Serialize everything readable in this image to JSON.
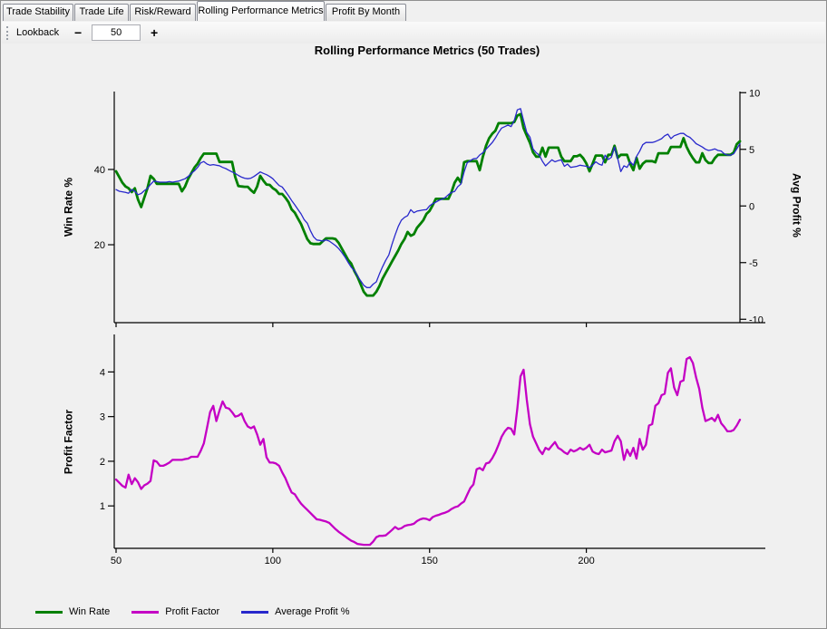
{
  "tabs": [
    {
      "label": "Trade Stability",
      "active": false
    },
    {
      "label": "Trade Life",
      "active": false
    },
    {
      "label": "Risk/Reward",
      "active": false
    },
    {
      "label": "Rolling Performance Metrics",
      "active": true
    },
    {
      "label": "Profit By Month",
      "active": false
    }
  ],
  "toolbar": {
    "label": "Lookback",
    "minus_label": "−",
    "value": "50",
    "plus_label": "+"
  },
  "legend": [
    {
      "label": "Win Rate",
      "color": "#008000"
    },
    {
      "label": "Profit Factor",
      "color": "#c400c4"
    },
    {
      "label": "Average Profit %",
      "color": "#2828cc"
    }
  ],
  "chart_data": [
    {
      "type": "line",
      "title": "Rolling Performance Metrics (50 Trades)",
      "ylabel_left": "Win Rate %",
      "ylabel_right": "Avg Profit %",
      "x_range": [
        50,
        249
      ],
      "y_left_range": [
        -0.7,
        60.7
      ],
      "y_right_range": [
        -10.3,
        10.1
      ],
      "y_left_ticks": [
        20,
        40
      ],
      "y_right_ticks": [
        -10,
        -5,
        0,
        5,
        10
      ],
      "x_ticks": [
        50,
        100,
        150,
        200
      ],
      "x_tick_labels": false,
      "legend_position": "bottom",
      "grid": false,
      "series": [
        {
          "name": "Win Rate",
          "axis": "left",
          "color": "#008000",
          "width": 2.8,
          "x_start": 50,
          "x_step": 1,
          "values": [
            39.5,
            38,
            36.5,
            35.5,
            35,
            34,
            35,
            32,
            30,
            32.5,
            35,
            38.3,
            37.5,
            36.2,
            36.2,
            36.2,
            36.2,
            36.2,
            36.2,
            36.2,
            36.2,
            34.2,
            35.5,
            37.5,
            39,
            40.5,
            41.5,
            43,
            44.2,
            44.2,
            44.2,
            44.2,
            44.2,
            42,
            42,
            42,
            42,
            42,
            38,
            35.6,
            35.5,
            35.4,
            35.4,
            34.5,
            33.8,
            35.5,
            38.3,
            37,
            36,
            35.9,
            35,
            34.5,
            33.5,
            33.5,
            32.5,
            31.3,
            29.4,
            28.5,
            27,
            25.5,
            23.5,
            21.5,
            20.4,
            20.2,
            20.2,
            20.2,
            21,
            21.7,
            21.7,
            21.7,
            21.5,
            20.5,
            19,
            17.5,
            16,
            15,
            13,
            11.5,
            9.5,
            7.5,
            6.5,
            6.5,
            6.5,
            7.5,
            9,
            11,
            12.5,
            14,
            15.5,
            17,
            18.5,
            20.2,
            21.5,
            23.4,
            22.4,
            22.8,
            24.5,
            25.5,
            26.5,
            28.2,
            29,
            30.5,
            32.2,
            32.2,
            32.2,
            32.2,
            32.2,
            34,
            36.5,
            37.8,
            36.5,
            41.9,
            42.2,
            42.2,
            42.2,
            42.2,
            39.8,
            43.4,
            46.3,
            48.3,
            49.5,
            50.3,
            52.3,
            52.3,
            52.3,
            52.3,
            52.3,
            52.6,
            54.3,
            54.7,
            51,
            49,
            47.1,
            44.6,
            43.4,
            43.4,
            45.8,
            43.4,
            45.8,
            45.8,
            45.8,
            45.8,
            43.4,
            42.2,
            42.2,
            42.2,
            43.5,
            43.5,
            43.9,
            43,
            41.6,
            39.5,
            41.5,
            43.7,
            43.7,
            43.7,
            41.9,
            43.9,
            43.9,
            46.3,
            43.1,
            43.9,
            43.9,
            43.9,
            41.5,
            39.8,
            43.1,
            40.2,
            41.5,
            42.2,
            42.2,
            42.2,
            41.9,
            44.3,
            44.3,
            44.3,
            44.3,
            46,
            46,
            46,
            46,
            48.3,
            46,
            44.3,
            43,
            41.9,
            41.9,
            44.3,
            42.5,
            41.7,
            41.7,
            43,
            43.9,
            43.9,
            43.9,
            43.9,
            43.9,
            44.5,
            46.7,
            47.5
          ]
        },
        {
          "name": "Average Profit %",
          "axis": "right",
          "color": "#2828cc",
          "width": 1.3,
          "x_start": 50,
          "x_step": 1,
          "values": [
            1.44,
            1.3,
            1.25,
            1.2,
            1.12,
            1.45,
            1.3,
            1.0,
            1.1,
            1.35,
            1.55,
            1.9,
            2.2,
            2.15,
            2.1,
            2.1,
            2.1,
            2.15,
            2.1,
            2.15,
            2.2,
            2.3,
            2.4,
            2.6,
            2.88,
            3.1,
            3.4,
            3.8,
            3.92,
            3.7,
            3.6,
            3.65,
            3.6,
            3.55,
            3.4,
            3.3,
            3.15,
            3.0,
            2.88,
            2.7,
            2.55,
            2.45,
            2.4,
            2.45,
            2.6,
            2.8,
            3.0,
            2.88,
            2.76,
            2.6,
            2.4,
            2.1,
            1.8,
            1.68,
            1.3,
            0.9,
            0.48,
            0.1,
            -0.3,
            -0.7,
            -1.2,
            -1.52,
            -2.2,
            -2.72,
            -3.0,
            -3.04,
            -3.1,
            -3.0,
            -3.1,
            -3.3,
            -3.5,
            -3.76,
            -4.1,
            -4.5,
            -4.96,
            -5.4,
            -5.7,
            -6.16,
            -6.6,
            -7.0,
            -7.2,
            -7.2,
            -6.9,
            -6.7,
            -6.0,
            -5.36,
            -4.8,
            -4.32,
            -3.4,
            -2.56,
            -1.8,
            -1.26,
            -1.0,
            -0.85,
            -0.32,
            -0.6,
            -0.45,
            -0.4,
            -0.35,
            -0.32,
            0.0,
            0.2,
            0.34,
            0.5,
            0.6,
            0.74,
            1.0,
            1.2,
            1.28,
            1.7,
            1.94,
            3.0,
            3.8,
            4.0,
            4.16,
            4.2,
            4.5,
            4.7,
            5.0,
            5.3,
            5.6,
            6.0,
            6.48,
            6.88,
            7.0,
            7.14,
            7.0,
            7.54,
            8.48,
            8.6,
            7.54,
            6.5,
            6.08,
            5.04,
            4.7,
            4.48,
            3.94,
            3.54,
            3.8,
            4.08,
            3.9,
            4.0,
            4.08,
            3.5,
            3.7,
            3.4,
            3.45,
            3.5,
            3.6,
            3.55,
            3.5,
            3.4,
            3.6,
            3.9,
            3.7,
            3.6,
            4.48,
            4.1,
            4.3,
            5.2,
            4.2,
            3.04,
            3.55,
            3.4,
            3.9,
            3.6,
            4.36,
            4.84,
            5.4,
            5.6,
            5.6,
            5.6,
            5.68,
            5.8,
            5.94,
            6.2,
            6.34,
            5.94,
            6.2,
            6.3,
            6.4,
            6.4,
            6.2,
            6.06,
            5.8,
            5.5,
            5.36,
            5.2,
            5.0,
            4.9,
            4.95,
            5.04,
            4.9,
            4.85,
            4.6,
            4.5,
            4.48,
            4.6,
            5.04,
            5.5
          ]
        }
      ]
    },
    {
      "type": "line",
      "title": "",
      "ylabel_left": "Profit Factor",
      "x_range": [
        50,
        249
      ],
      "y_left_range": [
        0.05,
        4.84
      ],
      "y_left_ticks": [
        1,
        2,
        3,
        4
      ],
      "x_ticks": [
        50,
        100,
        150,
        200
      ],
      "x_tick_labels": true,
      "grid": false,
      "series": [
        {
          "name": "Profit Factor",
          "axis": "left",
          "color": "#c400c4",
          "width": 2.3,
          "x_start": 50,
          "x_step": 1,
          "values": [
            1.59,
            1.52,
            1.45,
            1.41,
            1.7,
            1.49,
            1.62,
            1.53,
            1.38,
            1.46,
            1.5,
            1.56,
            2.02,
            1.99,
            1.9,
            1.9,
            1.93,
            1.97,
            2.03,
            2.03,
            2.03,
            2.03,
            2.05,
            2.06,
            2.1,
            2.1,
            2.1,
            2.23,
            2.4,
            2.75,
            3.1,
            3.24,
            2.9,
            3.14,
            3.34,
            3.2,
            3.18,
            3.1,
            3.0,
            3.02,
            3.07,
            2.9,
            2.78,
            2.74,
            2.78,
            2.6,
            2.37,
            2.5,
            2.09,
            1.97,
            1.97,
            1.95,
            1.9,
            1.75,
            1.62,
            1.45,
            1.3,
            1.26,
            1.15,
            1.05,
            0.98,
            0.91,
            0.84,
            0.77,
            0.7,
            0.69,
            0.67,
            0.65,
            0.62,
            0.55,
            0.48,
            0.42,
            0.37,
            0.32,
            0.27,
            0.22,
            0.19,
            0.15,
            0.14,
            0.13,
            0.13,
            0.13,
            0.2,
            0.3,
            0.33,
            0.33,
            0.34,
            0.4,
            0.46,
            0.53,
            0.48,
            0.5,
            0.55,
            0.57,
            0.58,
            0.6,
            0.66,
            0.7,
            0.72,
            0.71,
            0.68,
            0.75,
            0.78,
            0.8,
            0.83,
            0.85,
            0.88,
            0.93,
            0.97,
            0.99,
            1.05,
            1.1,
            1.25,
            1.4,
            1.48,
            1.82,
            1.85,
            1.8,
            1.95,
            1.97,
            2.07,
            2.2,
            2.37,
            2.55,
            2.67,
            2.75,
            2.73,
            2.6,
            3.18,
            3.9,
            4.05,
            3.38,
            2.83,
            2.55,
            2.4,
            2.25,
            2.16,
            2.3,
            2.26,
            2.35,
            2.43,
            2.3,
            2.26,
            2.2,
            2.16,
            2.26,
            2.22,
            2.25,
            2.3,
            2.26,
            2.3,
            2.37,
            2.22,
            2.18,
            2.16,
            2.26,
            2.2,
            2.22,
            2.24,
            2.45,
            2.57,
            2.45,
            2.03,
            2.26,
            2.12,
            2.3,
            2.06,
            2.5,
            2.26,
            2.37,
            2.8,
            2.83,
            3.24,
            3.3,
            3.48,
            3.51,
            3.98,
            4.08,
            3.65,
            3.48,
            3.78,
            3.81,
            4.29,
            4.33,
            4.2,
            3.88,
            3.62,
            3.2,
            2.9,
            2.93,
            2.97,
            2.9,
            3.04,
            2.85,
            2.77,
            2.67,
            2.67,
            2.7,
            2.8,
            2.93
          ]
        }
      ]
    }
  ]
}
